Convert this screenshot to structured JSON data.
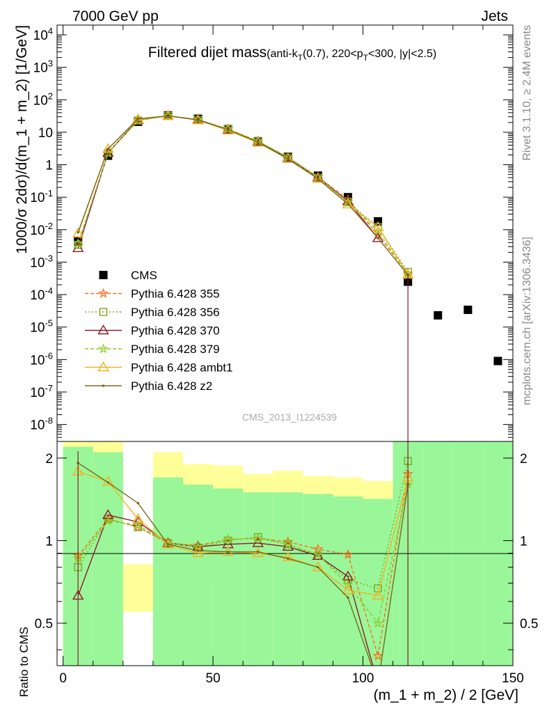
{
  "header": {
    "left": "7000 GeV pp",
    "right": "Jets",
    "side_top": "Rivet 3.1.10, ≥ 2.4M events",
    "side_bottom": "mcplots.cern.ch [arXiv:1306.3436]",
    "watermark": "CMS_2013_I1224539"
  },
  "chart_data": [
    {
      "type": "scatter",
      "panel": "main",
      "title": "Filtered dijet mass(anti-k_T(0.7), 220<p_T<300, |y|<2.5)",
      "ylabel": "1000/σ 2dσ)/d(m_1 + m_2) [1/GeV]",
      "yscale": "log",
      "ylim": [
        3e-09,
        20000.0
      ],
      "xlim": [
        -2,
        150
      ],
      "yticks": [
        "10^-8",
        "10^-7",
        "10^-6",
        "10^-5",
        "10^-4",
        "10^-3",
        "10^-2",
        "10^-1",
        "1",
        "10",
        "10^2",
        "10^3",
        "10^4"
      ],
      "legend_position": "left",
      "series": [
        {
          "name": "CMS",
          "color": "#000000",
          "style": "square",
          "x": [
            5,
            15,
            25,
            35,
            45,
            55,
            65,
            75,
            85,
            95,
            105,
            115,
            125,
            135,
            145
          ],
          "y": [
            0.0043,
            1.9,
            21,
            33,
            26,
            12.5,
            5.3,
            1.75,
            0.46,
            0.1,
            0.018,
            0.00025,
            2.3e-05,
            3.4e-05,
            9e-07
          ]
        },
        {
          "name": "Pythia 6.428 355",
          "color": "#ff6a1a",
          "style": "star-dashed",
          "x": [
            5,
            15,
            25,
            35,
            45,
            55,
            65,
            75,
            85,
            95,
            105,
            115
          ],
          "y": [
            0.0037,
            2.3,
            23,
            32,
            24.5,
            12.5,
            5.4,
            1.72,
            0.42,
            0.085,
            0.0068,
            0.00045
          ]
        },
        {
          "name": "Pythia 6.428 356",
          "color": "#7ca81e",
          "style": "square-open-dotted",
          "x": [
            5,
            15,
            25,
            35,
            45,
            55,
            65,
            75,
            85,
            95,
            105,
            115
          ],
          "y": [
            0.0034,
            2.3,
            23,
            32,
            24,
            12.4,
            5.3,
            1.65,
            0.4,
            0.07,
            0.012,
            0.0005
          ]
        },
        {
          "name": "Pythia 6.428 370",
          "color": "#8b1a2a",
          "style": "triangle-open-solid",
          "x": [
            5,
            15,
            25,
            35,
            45,
            55,
            65,
            75,
            85,
            95,
            105
          ],
          "y": [
            0.0027,
            2.35,
            24,
            32,
            24.5,
            12,
            5.1,
            1.6,
            0.41,
            0.075,
            0.0055
          ]
        },
        {
          "name": "Pythia 6.428 379",
          "color": "#8fcd2a",
          "style": "star-dashed",
          "x": [
            5,
            15,
            25,
            35,
            45,
            55,
            65,
            75,
            85,
            95,
            105,
            115
          ],
          "y": [
            0.0037,
            2.3,
            23,
            32,
            24.5,
            12.6,
            5.4,
            1.68,
            0.41,
            0.07,
            0.009,
            0.0004
          ]
        },
        {
          "name": "Pythia 6.428 ambt1",
          "color": "#f2b120",
          "style": "triangle-open-solid",
          "x": [
            5,
            15,
            25,
            35,
            45,
            55,
            65,
            75,
            85,
            95,
            105,
            115
          ],
          "y": [
            0.0077,
            3.1,
            25,
            32,
            23.5,
            11.4,
            4.8,
            1.52,
            0.37,
            0.06,
            0.012,
            0.00042
          ]
        },
        {
          "name": "Pythia 6.428 z2",
          "color": "#7a6a1a",
          "style": "dot-solid",
          "x": [
            5,
            15,
            25,
            35,
            45,
            55,
            65,
            75,
            85,
            95,
            105,
            115
          ],
          "y": [
            0.0083,
            3.1,
            26,
            32,
            24,
            12,
            5,
            1.5,
            0.37,
            0.062,
            0.0055,
            0.0004
          ]
        }
      ]
    },
    {
      "type": "line",
      "panel": "ratio",
      "ylabel": "Ratio to CMS",
      "xlabel": "(m_1 + m_2) / 2 [GeV]",
      "ylim": [
        0.35,
        2.3
      ],
      "xlim": [
        -2,
        150
      ],
      "xticks": [
        "0",
        "50",
        "100",
        "150"
      ],
      "yticks": [
        "0.5",
        "1",
        "2"
      ],
      "bands": {
        "x_edges": [
          0,
          10,
          20,
          30,
          40,
          50,
          60,
          70,
          80,
          90,
          100,
          110,
          120,
          130,
          140,
          150
        ],
        "green_lo": [
          0.35,
          0.35,
          0.35,
          0.35,
          0.35,
          0.35,
          0.35,
          0.35,
          0.35,
          0.35,
          0.35,
          0.35,
          0.35,
          0.35,
          0.35
        ],
        "green_hi": [
          2.2,
          2.1,
          0.35,
          1.7,
          1.6,
          1.55,
          1.5,
          1.5,
          1.48,
          1.45,
          1.42,
          2.3,
          2.3,
          2.3,
          2.3
        ],
        "yellow_lo": [
          0.35,
          0.35,
          0.55,
          0.35,
          0.6,
          0.7,
          0.35,
          0.35,
          0.35,
          0.35,
          0.35,
          0.35,
          0.35,
          0.35,
          0.35
        ],
        "yellow_hi": [
          2.3,
          2.3,
          0.82,
          2.1,
          1.9,
          1.88,
          1.75,
          1.8,
          1.72,
          1.7,
          1.65,
          2.3,
          2.2,
          2.05,
          2.3
        ]
      },
      "series": [
        {
          "name": "Pythia 6.428 355",
          "color": "#ff6a1a",
          "style": "star-dashed",
          "x": [
            5,
            15,
            25,
            35,
            45,
            55,
            65,
            75,
            85,
            95,
            105,
            115
          ],
          "y": [
            0.88,
            1.2,
            1.12,
            0.98,
            0.96,
            1.01,
            1.02,
            0.99,
            0.93,
            0.89,
            0.38,
            1.75
          ]
        },
        {
          "name": "Pythia 6.428 356",
          "color": "#7ca81e",
          "style": "square-open-dotted",
          "x": [
            5,
            15,
            25,
            35,
            45,
            55,
            65,
            75,
            85,
            95,
            105,
            115
          ],
          "y": [
            0.8,
            1.2,
            1.12,
            0.98,
            0.94,
            1.0,
            1.03,
            0.97,
            0.88,
            0.72,
            0.67,
            1.95
          ]
        },
        {
          "name": "Pythia 6.428 370",
          "color": "#8b1a2a",
          "style": "triangle-open-solid",
          "x": [
            5,
            15,
            25,
            35,
            45,
            55,
            65,
            75,
            85,
            95,
            105
          ],
          "y": [
            0.63,
            1.24,
            1.17,
            0.98,
            0.95,
            0.97,
            0.98,
            0.95,
            0.88,
            0.74,
            0.3
          ]
        },
        {
          "name": "Pythia 6.428 379",
          "color": "#8fcd2a",
          "style": "star-dashed",
          "x": [
            5,
            15,
            25,
            35,
            45,
            55,
            65,
            75,
            85,
            95,
            105,
            115
          ],
          "y": [
            0.86,
            1.18,
            1.14,
            0.98,
            0.95,
            1.01,
            1.02,
            0.97,
            0.89,
            0.69,
            0.5,
            1.6
          ]
        },
        {
          "name": "Pythia 6.428 ambt1",
          "color": "#f2b120",
          "style": "triangle-open-solid",
          "x": [
            5,
            15,
            25,
            35,
            45,
            55,
            65,
            75,
            85,
            95,
            105,
            115
          ],
          "y": [
            1.79,
            1.64,
            1.2,
            0.97,
            0.9,
            0.91,
            0.9,
            0.87,
            0.8,
            0.66,
            0.63,
            1.7
          ]
        },
        {
          "name": "Pythia 6.428 z2",
          "color": "#7a6a1a",
          "style": "dot-solid",
          "x": [
            5,
            15,
            25,
            35,
            45,
            55,
            65,
            75,
            85,
            95,
            105,
            115
          ],
          "y": [
            1.92,
            1.63,
            1.37,
            0.97,
            0.92,
            0.91,
            0.91,
            0.86,
            0.8,
            0.62,
            0.3,
            1.6
          ]
        }
      ]
    }
  ]
}
